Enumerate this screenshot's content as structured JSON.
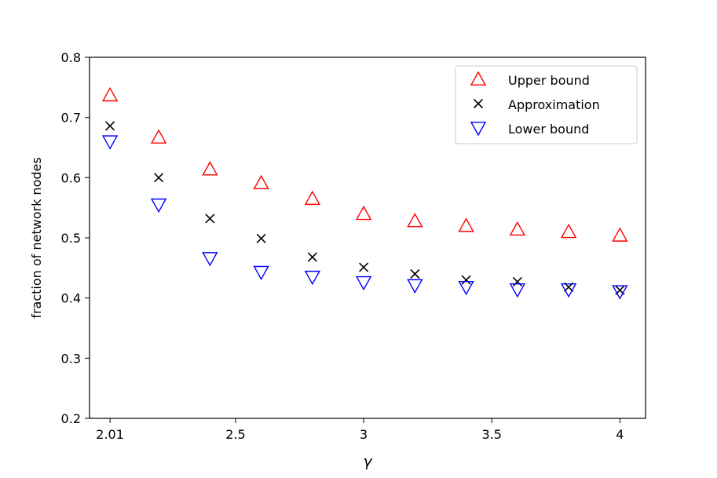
{
  "chart_data": {
    "type": "scatter",
    "title": "",
    "xlabel": "γ",
    "ylabel": "fraction of network nodes",
    "xlim": [
      1.93,
      4.1
    ],
    "ylim": [
      0.2,
      0.8
    ],
    "xticks": [
      2.01,
      2.5,
      3,
      3.5,
      4
    ],
    "xtick_labels": [
      "2.01",
      "2.5",
      "3",
      "3.5",
      "4"
    ],
    "yticks": [
      0.2,
      0.3,
      0.4,
      0.5,
      0.6,
      0.7,
      0.8
    ],
    "ytick_labels": [
      "0.2",
      "0.3",
      "0.4",
      "0.5",
      "0.6",
      "0.7",
      "0.8"
    ],
    "grid": false,
    "legend_position": "top-right",
    "series": [
      {
        "name": "Upper bound",
        "marker": "triangle-up",
        "color": "#ff0000",
        "x": [
          2.01,
          2.2,
          2.4,
          2.6,
          2.8,
          3.0,
          3.2,
          3.4,
          3.6,
          3.8,
          4.0
        ],
        "y": [
          0.737,
          0.667,
          0.614,
          0.591,
          0.565,
          0.54,
          0.528,
          0.52,
          0.514,
          0.51,
          0.504
        ]
      },
      {
        "name": "Approximation",
        "marker": "x",
        "color": "#000000",
        "x": [
          2.01,
          2.2,
          2.4,
          2.6,
          2.8,
          3.0,
          3.2,
          3.4,
          3.6,
          3.8,
          4.0
        ],
        "y": [
          0.686,
          0.6,
          0.532,
          0.499,
          0.468,
          0.451,
          0.44,
          0.43,
          0.427,
          0.418,
          0.413
        ]
      },
      {
        "name": "Lower bound",
        "marker": "triangle-down",
        "color": "#0000ff",
        "x": [
          2.01,
          2.2,
          2.4,
          2.6,
          2.8,
          3.0,
          3.2,
          3.4,
          3.6,
          3.8,
          4.0
        ],
        "y": [
          0.66,
          0.555,
          0.466,
          0.443,
          0.435,
          0.426,
          0.421,
          0.418,
          0.414,
          0.414,
          0.411
        ]
      }
    ]
  }
}
